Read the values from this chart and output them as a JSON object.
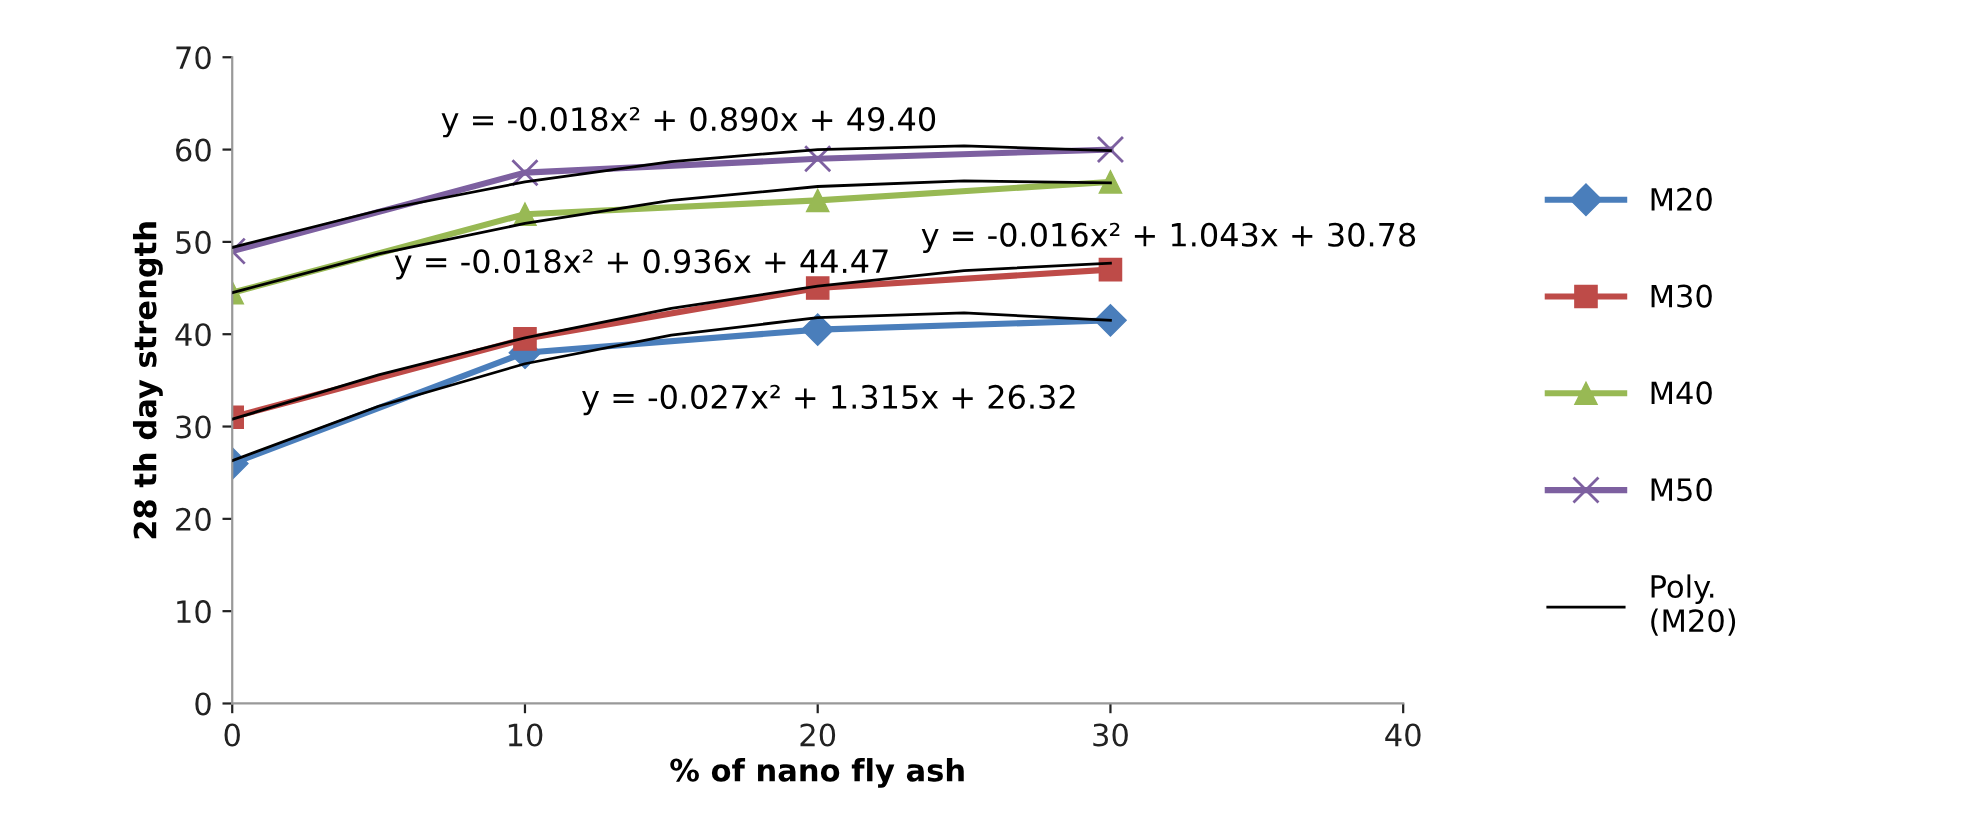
{
  "chart_data": {
    "type": "line",
    "xlabel": "% of nano fly ash",
    "ylabel": "28 th day strength",
    "xlim": [
      0,
      40
    ],
    "xticks": [
      0,
      10,
      20,
      30,
      40
    ],
    "ylim": [
      0,
      70
    ],
    "yticks": [
      0,
      10,
      20,
      30,
      40,
      50,
      60,
      70
    ],
    "grid": false,
    "legend": "right",
    "series": [
      {
        "name": "M20",
        "color": "#4a7ebb",
        "marker": "diamond",
        "x": [
          0,
          10,
          20,
          30
        ],
        "values": [
          26,
          38,
          40.5,
          41.5
        ]
      },
      {
        "name": "M30",
        "color": "#be4b48",
        "marker": "square",
        "x": [
          0,
          10,
          20,
          30
        ],
        "values": [
          31,
          39.5,
          45,
          47
        ]
      },
      {
        "name": "M40",
        "color": "#98b954",
        "marker": "triangle",
        "x": [
          0,
          10,
          20,
          30
        ],
        "values": [
          44.5,
          53,
          54.5,
          56.5
        ]
      },
      {
        "name": "M50",
        "color": "#7d60a0",
        "marker": "cross",
        "x": [
          0,
          10,
          20,
          30
        ],
        "values": [
          49,
          57.5,
          59,
          60
        ]
      },
      {
        "name": "Poly.\n(M20)",
        "color": "#000000",
        "marker": "none",
        "x": [
          0,
          5,
          10,
          15,
          20,
          25,
          30
        ],
        "values": [
          26.3,
          32.2,
          36.8,
          39.9,
          41.8,
          42.3,
          41.5
        ]
      },
      {
        "color": "#000000",
        "marker": "none",
        "x": [
          0,
          5,
          10,
          15,
          20,
          25,
          30
        ],
        "values": [
          30.8,
          35.6,
          39.6,
          42.8,
          45.2,
          46.9,
          47.7
        ]
      },
      {
        "color": "#000000",
        "marker": "none",
        "x": [
          0,
          5,
          10,
          15,
          20,
          25,
          30
        ],
        "values": [
          44.5,
          48.7,
          52.0,
          54.5,
          56.0,
          56.6,
          56.4
        ]
      },
      {
        "color": "#000000",
        "marker": "none",
        "x": [
          0,
          5,
          10,
          15,
          20,
          25,
          30
        ],
        "values": [
          49.4,
          53.4,
          56.5,
          58.7,
          60.0,
          60.4,
          59.9
        ]
      }
    ],
    "annotations": [
      "y = -0.018x² + 0.890x + 49.40",
      "y = -0.018x² + 0.936x + 44.47",
      "y = -0.016x² + 1.043x + 30.78",
      "y = -0.027x² + 1.315x + 26.32"
    ]
  }
}
